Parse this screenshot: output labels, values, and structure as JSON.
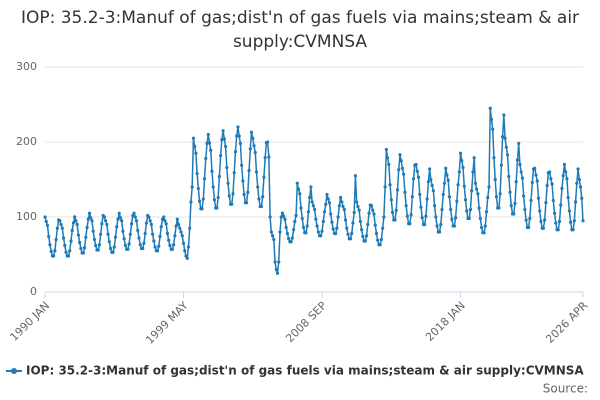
{
  "chart_data": {
    "type": "line",
    "title": "IOP: 35.2-3:Manuf of gas;dist'n of gas fuels via mains;steam & air supply:CVMNSA",
    "source_label": "Source:",
    "categories": [
      "1990 JAN",
      null,
      null,
      null,
      null,
      null,
      null,
      null,
      null,
      null,
      null,
      null,
      null,
      null,
      null,
      null,
      null,
      null,
      null,
      null,
      null,
      null,
      null,
      null,
      null,
      null,
      null,
      null,
      null,
      null,
      null,
      null,
      null,
      null,
      null,
      null,
      null,
      null,
      null,
      null,
      null,
      null,
      null,
      null,
      null,
      null,
      null,
      null,
      null,
      null,
      null,
      null,
      null,
      null,
      null,
      null,
      null,
      null,
      null,
      null,
      null,
      null,
      null,
      null,
      null,
      null,
      null,
      null,
      null,
      null,
      null,
      null,
      null,
      null,
      null,
      null,
      null,
      null,
      null,
      null,
      null,
      null,
      null,
      null,
      null,
      null,
      null,
      null,
      null,
      null,
      null,
      null,
      null,
      null,
      null,
      null,
      null,
      null,
      null,
      null,
      null,
      null,
      null,
      null,
      null,
      null,
      null,
      null,
      null,
      null,
      null,
      null,
      "1999 MAY",
      null,
      null,
      null,
      null,
      null,
      null,
      null,
      null,
      null,
      null,
      null,
      null,
      null,
      null,
      null,
      null,
      null,
      null,
      null,
      null,
      null,
      null,
      null,
      null,
      null,
      null,
      null,
      null,
      null,
      null,
      null,
      null,
      null,
      null,
      null,
      null,
      null,
      null,
      null,
      null,
      null,
      null,
      null,
      null,
      null,
      null,
      null,
      null,
      null,
      null,
      null,
      null,
      null,
      null,
      null,
      null,
      null,
      null,
      null,
      null,
      null,
      null,
      null,
      null,
      null,
      null,
      null,
      null,
      null,
      null,
      null,
      null,
      null,
      null,
      null,
      null,
      null,
      null,
      null,
      null,
      null,
      null,
      null,
      null,
      null,
      null,
      null,
      null,
      null,
      null,
      null,
      null,
      null,
      null,
      null,
      null,
      null,
      null,
      null,
      null,
      null,
      null,
      null,
      null,
      null,
      null,
      null,
      null,
      null,
      null,
      null,
      "2008 SEP",
      null,
      null,
      null,
      null,
      null,
      null,
      null,
      null,
      null,
      null,
      null,
      null,
      null,
      null,
      null,
      null,
      null,
      null,
      null,
      null,
      null,
      null,
      null,
      null,
      null,
      null,
      null,
      null,
      null,
      null,
      null,
      null,
      null,
      null,
      null,
      null,
      null,
      null,
      null,
      null,
      null,
      null,
      null,
      null,
      null,
      null,
      null,
      null,
      null,
      null,
      null,
      null,
      null,
      null,
      null,
      null,
      null,
      null,
      null,
      null,
      null,
      null,
      null,
      null,
      null,
      null,
      null,
      null,
      null,
      null,
      null,
      null,
      null,
      null,
      null,
      null,
      null,
      null,
      null,
      null,
      null,
      null,
      null,
      null,
      null,
      null,
      null,
      null,
      null,
      null,
      null,
      null,
      null,
      null,
      null,
      null,
      null,
      null,
      null,
      null,
      null,
      null,
      null,
      null,
      null,
      null,
      null,
      null,
      null,
      null,
      null,
      "2018 JAN",
      null,
      null,
      null,
      null,
      null,
      null,
      null,
      null,
      null,
      null,
      null,
      null,
      null,
      null,
      null,
      null,
      null,
      null,
      null,
      null,
      null,
      null,
      null,
      null,
      null,
      null,
      null,
      null,
      null,
      null,
      null,
      null,
      null,
      null,
      null,
      null,
      null,
      null,
      null,
      null,
      null,
      null,
      null,
      null,
      null,
      null,
      null,
      null,
      null,
      null,
      null,
      null,
      null,
      null,
      null,
      null,
      null,
      null,
      null,
      null,
      null,
      null,
      null,
      null,
      null,
      null,
      null,
      null,
      null,
      null,
      null,
      null,
      null,
      null,
      null,
      null,
      null,
      null,
      null,
      null,
      null,
      null,
      null,
      null,
      null,
      null,
      null,
      null,
      null,
      null,
      null,
      null,
      null,
      null,
      null,
      null,
      null,
      null,
      "2026 APR"
    ],
    "series": [
      {
        "name": "IOP: 35.2-3:Manuf of gas;dist'n of gas fuels via mains;steam & air supply:CVMNSA",
        "color": "#1f7ab5",
        "values": [
          100,
          94,
          89,
          74,
          63,
          54,
          48,
          48,
          55,
          70,
          85,
          96,
          95,
          90,
          85,
          72,
          62,
          53,
          48,
          48,
          55,
          68,
          82,
          92,
          100,
          95,
          90,
          76,
          66,
          58,
          52,
          52,
          59,
          73,
          86,
          97,
          105,
          99,
          95,
          81,
          70,
          62,
          56,
          56,
          63,
          77,
          91,
          102,
          100,
          95,
          90,
          77,
          67,
          58,
          53,
          53,
          60,
          73,
          87,
          97,
          105,
          99,
          95,
          81,
          71,
          62,
          57,
          57,
          64,
          77,
          91,
          102,
          105,
          100,
          95,
          82,
          72,
          63,
          58,
          58,
          65,
          78,
          92,
          102,
          100,
          95,
          90,
          77,
          68,
          60,
          55,
          55,
          61,
          74,
          87,
          97,
          100,
          95,
          91,
          78,
          69,
          62,
          57,
          57,
          63,
          75,
          88,
          97,
          90,
          85,
          80,
          75,
          65,
          55,
          48,
          45,
          60,
          85,
          120,
          140,
          205,
          194,
          185,
          158,
          138,
          121,
          111,
          111,
          124,
          151,
          178,
          198,
          210,
          199,
          189,
          161,
          140,
          123,
          112,
          112,
          126,
          154,
          182,
          203,
          215,
          204,
          194,
          166,
          145,
          128,
          117,
          117,
          131,
          159,
          187,
          208,
          220,
          208,
          198,
          169,
          148,
          130,
          119,
          119,
          133,
          162,
          191,
          213,
          205,
          195,
          186,
          160,
          140,
          124,
          114,
          114,
          127,
          153,
          179,
          199,
          200,
          180,
          100,
          80,
          75,
          70,
          40,
          30,
          25,
          40,
          80,
          100,
          105,
          101,
          97,
          86,
          78,
          71,
          67,
          67,
          72,
          83,
          94,
          102,
          145,
          137,
          131,
          112,
          98,
          86,
          79,
          79,
          88,
          107,
          126,
          140,
          120,
          115,
          110,
          97,
          88,
          80,
          75,
          75,
          81,
          94,
          107,
          117,
          130,
          124,
          119,
          104,
          93,
          84,
          78,
          78,
          85,
          100,
          115,
          126,
          120,
          114,
          110,
          96,
          85,
          77,
          71,
          71,
          78,
          92,
          106,
          155,
          120,
          114,
          109,
          94,
          83,
          74,
          68,
          68,
          75,
          90,
          105,
          116,
          115,
          109,
          104,
          89,
          78,
          69,
          63,
          63,
          70,
          85,
          100,
          140,
          190,
          179,
          170,
          143,
          123,
          106,
          96,
          96,
          109,
          136,
          163,
          183,
          175,
          165,
          157,
          133,
          115,
          101,
          91,
          91,
          103,
          127,
          151,
          169,
          170,
          161,
          153,
          130,
          113,
          99,
          90,
          90,
          101,
          124,
          147,
          164,
          150,
          142,
          135,
          115,
          100,
          88,
          80,
          80,
          90,
          110,
          130,
          145,
          165,
          156,
          149,
          127,
          110,
          97,
          88,
          88,
          99,
          121,
          143,
          160,
          185,
          175,
          166,
          141,
          123,
          108,
          98,
          98,
          110,
          135,
          160,
          179,
          145,
          137,
          131,
          112,
          98,
          86,
          79,
          79,
          88,
          107,
          126,
          140,
          245,
          230,
          217,
          179,
          150,
          127,
          112,
          112,
          131,
          169,
          207,
          236,
          205,
          193,
          183,
          154,
          133,
          115,
          104,
          104,
          118,
          147,
          176,
          198,
          170,
          160,
          152,
          128,
          110,
          96,
          86,
          86,
          98,
          122,
          146,
          164,
          165,
          156,
          148,
          125,
          108,
          94,
          85,
          85,
          96,
          119,
          142,
          159,
          160,
          151,
          144,
          122,
          105,
          92,
          83,
          83,
          94,
          116,
          138,
          155,
          170,
          160,
          151,
          126,
          108,
          93,
          83,
          83,
          95,
          120,
          145,
          164,
          150,
          140,
          125,
          95
        ]
      }
    ],
    "ylim": [
      0,
      300
    ],
    "yticks": [
      0,
      100,
      200,
      300
    ],
    "grid": true
  }
}
